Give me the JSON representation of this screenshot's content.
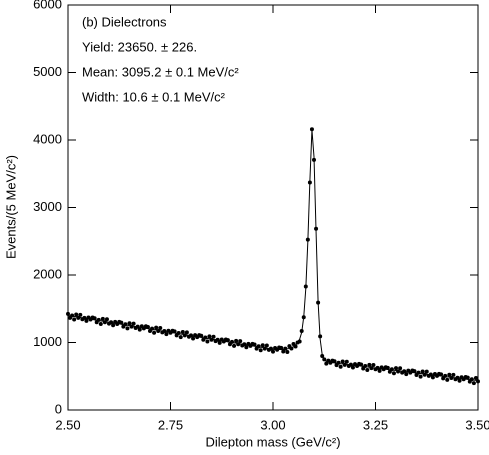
{
  "chart_data": {
    "type": "scatter",
    "xlabel": "Dilepton mass (GeV/c²)",
    "ylabel": "Events/(5 MeV/c²)",
    "annotations": [
      "(b) Dielectrons",
      "Yield: 23650. ± 226.",
      "Mean: 3095.2 ± 0.1 MeV/c²",
      "Width: 10.6 ± 0.1 MeV/c²"
    ],
    "xlim": [
      2.5,
      3.5
    ],
    "ylim": [
      0,
      6000
    ],
    "xticks": [
      {
        "value": 2.5,
        "label": "2.50"
      },
      {
        "value": 2.75,
        "label": "2.75"
      },
      {
        "value": 3.0,
        "label": "3.00"
      },
      {
        "value": 3.25,
        "label": "3.25"
      },
      {
        "value": 3.5,
        "label": "3.50"
      }
    ],
    "yticks": [
      0,
      1000,
      2000,
      3000,
      4000,
      5000,
      6000
    ],
    "x": [
      2.5,
      2.505,
      2.51,
      2.515,
      2.52,
      2.525,
      2.53,
      2.535,
      2.54,
      2.545,
      2.55,
      2.555,
      2.56,
      2.565,
      2.57,
      2.575,
      2.58,
      2.585,
      2.59,
      2.595,
      2.6,
      2.605,
      2.61,
      2.615,
      2.62,
      2.625,
      2.63,
      2.635,
      2.64,
      2.645,
      2.65,
      2.655,
      2.66,
      2.665,
      2.67,
      2.675,
      2.68,
      2.685,
      2.69,
      2.695,
      2.7,
      2.705,
      2.71,
      2.715,
      2.72,
      2.725,
      2.73,
      2.735,
      2.74,
      2.745,
      2.75,
      2.755,
      2.76,
      2.765,
      2.77,
      2.775,
      2.78,
      2.785,
      2.79,
      2.795,
      2.8,
      2.805,
      2.81,
      2.815,
      2.82,
      2.825,
      2.83,
      2.835,
      2.84,
      2.845,
      2.85,
      2.855,
      2.86,
      2.865,
      2.87,
      2.875,
      2.88,
      2.885,
      2.89,
      2.895,
      2.9,
      2.905,
      2.91,
      2.915,
      2.92,
      2.925,
      2.93,
      2.935,
      2.94,
      2.945,
      2.95,
      2.955,
      2.96,
      2.965,
      2.97,
      2.975,
      2.98,
      2.985,
      2.99,
      2.995,
      3.0,
      3.005,
      3.01,
      3.015,
      3.02,
      3.025,
      3.03,
      3.035,
      3.04,
      3.045,
      3.05,
      3.055,
      3.06,
      3.065,
      3.07,
      3.075,
      3.08,
      3.085,
      3.09,
      3.095,
      3.1,
      3.105,
      3.11,
      3.115,
      3.12,
      3.125,
      3.13,
      3.135,
      3.14,
      3.145,
      3.15,
      3.155,
      3.16,
      3.165,
      3.17,
      3.175,
      3.18,
      3.185,
      3.19,
      3.195,
      3.2,
      3.205,
      3.21,
      3.215,
      3.22,
      3.225,
      3.23,
      3.235,
      3.24,
      3.245,
      3.25,
      3.255,
      3.26,
      3.265,
      3.27,
      3.275,
      3.28,
      3.285,
      3.29,
      3.295,
      3.3,
      3.305,
      3.31,
      3.315,
      3.32,
      3.325,
      3.33,
      3.335,
      3.34,
      3.345,
      3.35,
      3.355,
      3.36,
      3.365,
      3.37,
      3.375,
      3.38,
      3.385,
      3.39,
      3.395,
      3.4,
      3.405,
      3.41,
      3.415,
      3.42,
      3.425,
      3.43,
      3.435,
      3.44,
      3.445,
      3.45,
      3.455,
      3.46,
      3.465,
      3.47,
      3.475,
      3.48,
      3.485,
      3.49,
      3.495,
      3.5
    ],
    "series": [
      {
        "style": "points",
        "color": "#000000",
        "values": [
          1425,
          1365,
          1400,
          1340,
          1415,
          1365,
          1410,
          1345,
          1365,
          1320,
          1370,
          1340,
          1370,
          1360,
          1300,
          1335,
          1275,
          1350,
          1300,
          1345,
          1280,
          1300,
          1255,
          1305,
          1275,
          1305,
          1295,
          1235,
          1270,
          1210,
          1285,
          1235,
          1280,
          1215,
          1235,
          1190,
          1240,
          1210,
          1240,
          1230,
          1170,
          1205,
          1145,
          1220,
          1170,
          1215,
          1150,
          1170,
          1125,
          1175,
          1145,
          1175,
          1165,
          1105,
          1140,
          1080,
          1155,
          1105,
          1150,
          1085,
          1105,
          1060,
          1110,
          1080,
          1110,
          1100,
          1040,
          1075,
          1015,
          1090,
          1040,
          1085,
          1020,
          1040,
          995,
          1045,
          1015,
          1045,
          1035,
          975,
          1010,
          950,
          1025,
          975,
          1020,
          955,
          975,
          930,
          980,
          950,
          980,
          970,
          910,
          945,
          885,
          960,
          910,
          955,
          890,
          910,
          865,
          918,
          892,
          926,
          921,
          867,
          910,
          860,
          947,
          912,
          978,
          940,
          1000,
          1015,
          1170,
          1375,
          1830,
          2525,
          3370,
          4160,
          3705,
          2685,
          1590,
          1090,
          800,
          750,
          687,
          732,
          700,
          731,
          723,
          664,
          700,
          641,
          718,
          669,
          715,
          651,
          673,
          629,
          680,
          651,
          683,
          674,
          615,
          651,
          593,
          669,
          620,
          666,
          603,
          624,
          580,
          631,
          603,
          634,
          625,
          566,
          603,
          544,
          620,
          571,
          618,
          554,
          575,
          531,
          583,
          554,
          585,
          576,
          518,
          554,
          495,
          571,
          523,
          569,
          505,
          526,
          483,
          534,
          505,
          536,
          528,
          469,
          505,
          446,
          523,
          474,
          520,
          456,
          478,
          434,
          485,
          456,
          488,
          479,
          420,
          456,
          398,
          474,
          425
        ]
      },
      {
        "style": "line",
        "color": "#000000",
        "values": [
          1400,
          1395,
          1390,
          1385,
          1380,
          1375,
          1370,
          1365,
          1360,
          1355,
          1350,
          1345,
          1340,
          1335,
          1330,
          1325,
          1320,
          1315,
          1310,
          1305,
          1300,
          1295,
          1290,
          1285,
          1280,
          1275,
          1270,
          1265,
          1260,
          1255,
          1250,
          1245,
          1240,
          1235,
          1230,
          1225,
          1220,
          1215,
          1210,
          1205,
          1200,
          1195,
          1190,
          1185,
          1180,
          1175,
          1170,
          1165,
          1160,
          1155,
          1150,
          1145,
          1140,
          1135,
          1130,
          1125,
          1120,
          1115,
          1110,
          1105,
          1100,
          1095,
          1090,
          1085,
          1080,
          1075,
          1070,
          1065,
          1060,
          1055,
          1050,
          1045,
          1040,
          1035,
          1030,
          1025,
          1020,
          1015,
          1010,
          1005,
          1000,
          995,
          990,
          985,
          980,
          975,
          970,
          965,
          960,
          955,
          950,
          945,
          940,
          935,
          930,
          925,
          920,
          915,
          910,
          905,
          900,
          898,
          897,
          896,
          896,
          897,
          900,
          905,
          912,
          922,
          938,
          960,
          995,
          1050,
          1150,
          1380,
          1800,
          2500,
          3400,
          4150,
          3750,
          2650,
          1600,
          1050,
          820,
          745,
          722,
          712,
          705,
          701,
          698,
          694,
          690,
          686,
          683,
          679,
          675,
          671,
          668,
          664,
          660,
          656,
          653,
          649,
          645,
          641,
          638,
          634,
          630,
          626,
          623,
          619,
          615,
          611,
          608,
          604,
          600,
          596,
          593,
          589,
          585,
          581,
          578,
          574,
          570,
          566,
          563,
          559,
          555,
          551,
          548,
          544,
          540,
          536,
          533,
          529,
          525,
          521,
          518,
          514,
          510,
          506,
          503,
          499,
          495,
          491,
          488,
          484,
          480,
          476,
          473,
          469,
          465,
          461,
          458,
          454,
          450,
          446,
          443,
          439,
          435
        ]
      }
    ]
  }
}
